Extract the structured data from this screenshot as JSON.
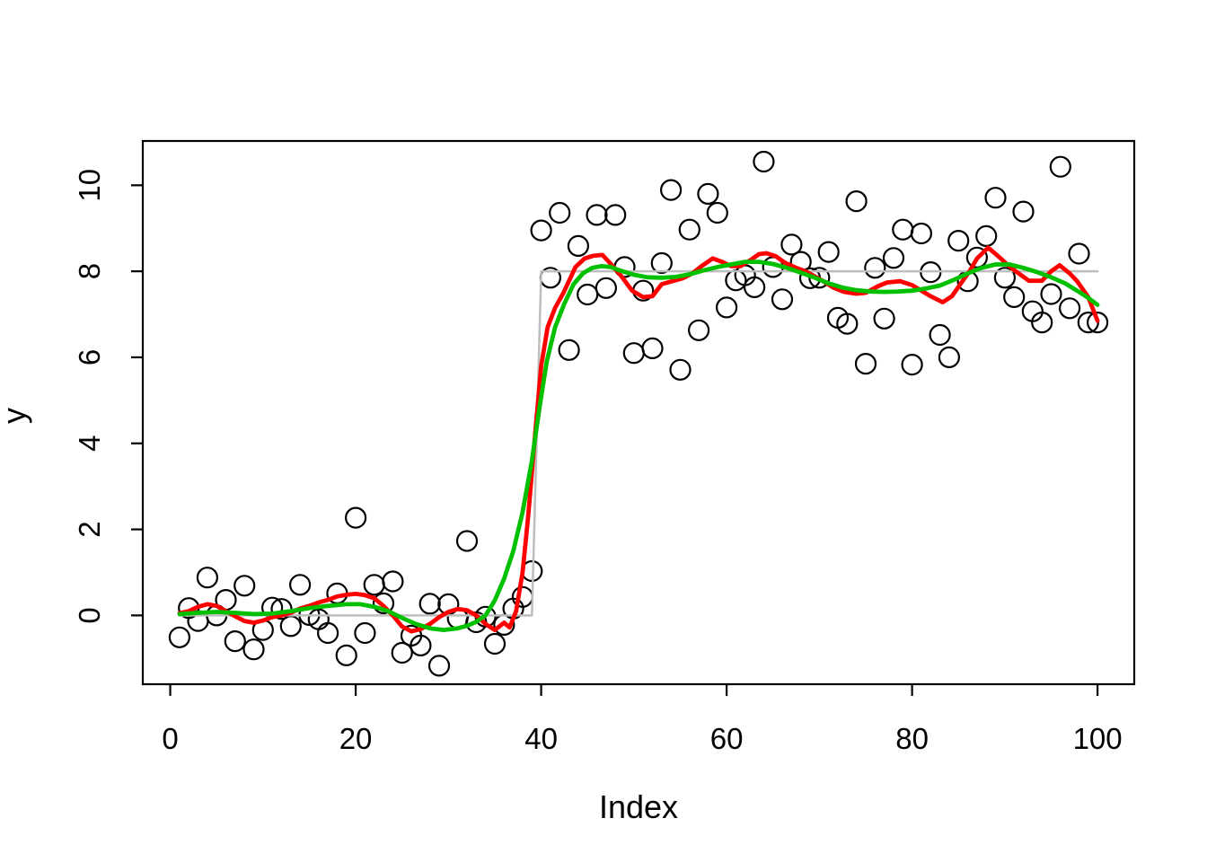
{
  "figure": {
    "x_axis_title": "Index",
    "y_axis_title": "y",
    "background": "#FFFFFF"
  },
  "colors": {
    "points": "#000000",
    "step_line_gray": "#BEBEBE",
    "rough_smoother_red": "#FF0000",
    "smooth_curve_green": "#00C000",
    "axis": "#000000"
  },
  "chart_data": {
    "type": "scatter",
    "title": "",
    "xlabel": "Index",
    "ylabel": "y",
    "x_tick_labels": [
      0,
      20,
      40,
      60,
      80,
      100
    ],
    "y_tick_labels": [
      0,
      2,
      4,
      6,
      8,
      10
    ],
    "xlim": [
      -2.96,
      103.96
    ],
    "ylim": [
      -1.6,
      11.03
    ],
    "grid": false,
    "legend_position": "none",
    "points_x_start": 1,
    "points_y": [
      -0.51,
      0.17,
      -0.13,
      0.88,
      0.0,
      0.36,
      -0.6,
      0.69,
      -0.79,
      -0.34,
      0.18,
      0.15,
      -0.25,
      0.71,
      0.01,
      -0.09,
      -0.41,
      0.51,
      -0.93,
      2.27,
      -0.41,
      0.71,
      0.28,
      0.79,
      -0.87,
      -0.47,
      -0.7,
      0.27,
      -1.17,
      0.26,
      -0.07,
      1.73,
      -0.16,
      -0.03,
      -0.66,
      -0.22,
      0.16,
      0.43,
      1.03,
      8.95,
      7.85,
      9.36,
      6.17,
      8.59,
      7.46,
      9.31,
      7.61,
      9.31,
      8.1,
      6.1,
      7.55,
      6.21,
      8.19,
      9.89,
      5.71,
      8.97,
      6.63,
      9.8,
      9.36,
      7.16,
      7.79,
      7.91,
      7.63,
      10.55,
      8.1,
      7.35,
      8.62,
      8.22,
      7.84,
      7.85,
      8.45,
      6.92,
      6.78,
      9.63,
      5.85,
      8.08,
      6.9,
      8.31,
      8.97,
      5.83,
      8.88,
      7.98,
      6.52,
      6.0,
      8.71,
      7.77,
      8.32,
      8.82,
      9.71,
      7.85,
      7.4,
      9.39,
      7.07,
      6.81,
      7.47,
      10.43,
      7.14,
      8.41,
      6.81,
      6.81
    ],
    "point_style": {
      "marker": "open-circle",
      "radius_px": 11,
      "stroke_px": 2.2
    },
    "series": [
      {
        "name": "true-mean-step",
        "color": "#BEBEBE",
        "width": 2.5,
        "points": [
          [
            1,
            0
          ],
          [
            39,
            0
          ],
          [
            40,
            8
          ],
          [
            100,
            8
          ]
        ]
      },
      {
        "name": "running-mean-red",
        "color": "#FF0000",
        "width": 4.8,
        "points": [
          [
            1,
            0.05
          ],
          [
            2,
            0.1
          ],
          [
            3,
            0.2
          ],
          [
            4,
            0.26
          ],
          [
            5,
            0.22
          ],
          [
            6,
            0.1
          ],
          [
            7,
            -0.02
          ],
          [
            8,
            -0.13
          ],
          [
            9,
            -0.17
          ],
          [
            10,
            -0.12
          ],
          [
            11,
            -0.04
          ],
          [
            12,
            0.0
          ],
          [
            13,
            0.06
          ],
          [
            14,
            0.16
          ],
          [
            15,
            0.22
          ],
          [
            16,
            0.3
          ],
          [
            17,
            0.36
          ],
          [
            18,
            0.44
          ],
          [
            19,
            0.48
          ],
          [
            20,
            0.5
          ],
          [
            21,
            0.47
          ],
          [
            22,
            0.4
          ],
          [
            23,
            0.22
          ],
          [
            24,
            0.0
          ],
          [
            25,
            -0.26
          ],
          [
            26,
            -0.37
          ],
          [
            27,
            -0.32
          ],
          [
            28,
            -0.2
          ],
          [
            29,
            -0.04
          ],
          [
            30,
            0.08
          ],
          [
            31,
            0.15
          ],
          [
            32,
            0.12
          ],
          [
            33,
            0.0
          ],
          [
            34,
            -0.2
          ],
          [
            35,
            -0.34
          ],
          [
            36,
            -0.17
          ],
          [
            36.6,
            -0.28
          ],
          [
            37.3,
            0.1
          ],
          [
            38,
            1.0
          ],
          [
            38.6,
            2.3
          ],
          [
            39.3,
            4.1
          ],
          [
            40,
            5.8
          ],
          [
            40.7,
            6.7
          ],
          [
            41.5,
            7.15
          ],
          [
            42.4,
            7.5
          ],
          [
            43.7,
            8.1
          ],
          [
            44.7,
            8.3
          ],
          [
            45.6,
            8.36
          ],
          [
            46.6,
            8.38
          ],
          [
            47.6,
            8.15
          ],
          [
            48.6,
            7.9
          ],
          [
            49.8,
            7.55
          ],
          [
            51,
            7.4
          ],
          [
            52,
            7.42
          ],
          [
            53,
            7.7
          ],
          [
            54.3,
            7.78
          ],
          [
            55.3,
            7.84
          ],
          [
            56.3,
            7.95
          ],
          [
            57.3,
            8.12
          ],
          [
            58.5,
            8.3
          ],
          [
            59.5,
            8.22
          ],
          [
            60.5,
            8.12
          ],
          [
            61.5,
            8.12
          ],
          [
            62.5,
            8.25
          ],
          [
            63.5,
            8.4
          ],
          [
            64.3,
            8.42
          ],
          [
            65.3,
            8.35
          ],
          [
            66.3,
            8.2
          ],
          [
            67.5,
            8.08
          ],
          [
            68.5,
            8.0
          ],
          [
            69.5,
            7.88
          ],
          [
            70.5,
            7.76
          ],
          [
            71.5,
            7.62
          ],
          [
            72.7,
            7.52
          ],
          [
            74,
            7.48
          ],
          [
            75,
            7.5
          ],
          [
            76.3,
            7.65
          ],
          [
            77.3,
            7.74
          ],
          [
            78.7,
            7.77
          ],
          [
            80,
            7.68
          ],
          [
            81,
            7.55
          ],
          [
            82,
            7.42
          ],
          [
            83.3,
            7.28
          ],
          [
            84.3,
            7.42
          ],
          [
            85.2,
            7.7
          ],
          [
            86.2,
            8.0
          ],
          [
            87,
            8.3
          ],
          [
            88.2,
            8.55
          ],
          [
            89.3,
            8.35
          ],
          [
            90.3,
            8.15
          ],
          [
            91.3,
            7.98
          ],
          [
            92.6,
            7.78
          ],
          [
            94,
            7.78
          ],
          [
            95,
            8.0
          ],
          [
            95.9,
            8.14
          ],
          [
            97,
            7.95
          ],
          [
            97.8,
            7.77
          ],
          [
            99,
            7.4
          ],
          [
            100,
            6.85
          ]
        ]
      },
      {
        "name": "kernel-smooth-green",
        "color": "#00C000",
        "width": 4.8,
        "points": [
          [
            1,
            0.03
          ],
          [
            3,
            0.06
          ],
          [
            5,
            0.08
          ],
          [
            7,
            0.06
          ],
          [
            9,
            0.03
          ],
          [
            11,
            0.04
          ],
          [
            13,
            0.1
          ],
          [
            15,
            0.17
          ],
          [
            17,
            0.22
          ],
          [
            19,
            0.26
          ],
          [
            20.5,
            0.26
          ],
          [
            22,
            0.2
          ],
          [
            23.5,
            0.1
          ],
          [
            25,
            -0.06
          ],
          [
            26.5,
            -0.2
          ],
          [
            28,
            -0.3
          ],
          [
            29.5,
            -0.34
          ],
          [
            31,
            -0.3
          ],
          [
            32,
            -0.24
          ],
          [
            33,
            -0.15
          ],
          [
            34,
            0.0
          ],
          [
            35,
            0.35
          ],
          [
            36,
            0.85
          ],
          [
            37,
            1.5
          ],
          [
            38,
            2.4
          ],
          [
            39,
            3.6
          ],
          [
            39.8,
            4.8
          ],
          [
            40.6,
            5.9
          ],
          [
            41.5,
            6.7
          ],
          [
            42.5,
            7.25
          ],
          [
            43.5,
            7.7
          ],
          [
            44.5,
            7.95
          ],
          [
            45.5,
            8.08
          ],
          [
            46.5,
            8.12
          ],
          [
            47.5,
            8.1
          ],
          [
            48.5,
            8.02
          ],
          [
            50,
            7.92
          ],
          [
            51.5,
            7.86
          ],
          [
            53,
            7.85
          ],
          [
            54.5,
            7.87
          ],
          [
            56,
            7.93
          ],
          [
            57.5,
            8.02
          ],
          [
            59,
            8.1
          ],
          [
            60.5,
            8.16
          ],
          [
            62,
            8.22
          ],
          [
            63.5,
            8.22
          ],
          [
            65,
            8.17
          ],
          [
            66.5,
            8.08
          ],
          [
            68,
            7.97
          ],
          [
            69.5,
            7.85
          ],
          [
            71,
            7.72
          ],
          [
            72.5,
            7.62
          ],
          [
            74,
            7.56
          ],
          [
            75.5,
            7.53
          ],
          [
            77,
            7.52
          ],
          [
            78.5,
            7.53
          ],
          [
            80,
            7.55
          ],
          [
            81.5,
            7.6
          ],
          [
            83,
            7.67
          ],
          [
            84.5,
            7.8
          ],
          [
            86,
            7.95
          ],
          [
            87.5,
            8.08
          ],
          [
            89,
            8.16
          ],
          [
            90.5,
            8.16
          ],
          [
            92,
            8.08
          ],
          [
            93.5,
            7.98
          ],
          [
            95,
            7.86
          ],
          [
            96.5,
            7.72
          ],
          [
            98,
            7.52
          ],
          [
            99,
            7.38
          ],
          [
            100,
            7.22
          ]
        ]
      }
    ]
  }
}
